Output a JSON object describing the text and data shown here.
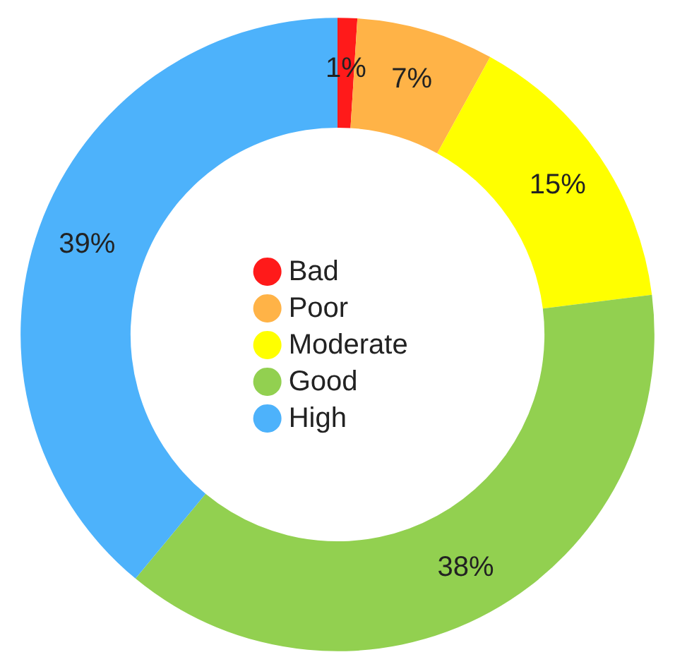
{
  "chart_data": {
    "type": "donut",
    "categories": [
      "Bad",
      "Poor",
      "Moderate",
      "Good",
      "High"
    ],
    "values": [
      1,
      7,
      15,
      38,
      39
    ],
    "colors": [
      "#ff1a1a",
      "#ffb347",
      "#ffff00",
      "#92d050",
      "#4db2fb"
    ],
    "value_labels": [
      "1%",
      "7%",
      "15%",
      "38%",
      "39%"
    ],
    "legend": "center"
  }
}
